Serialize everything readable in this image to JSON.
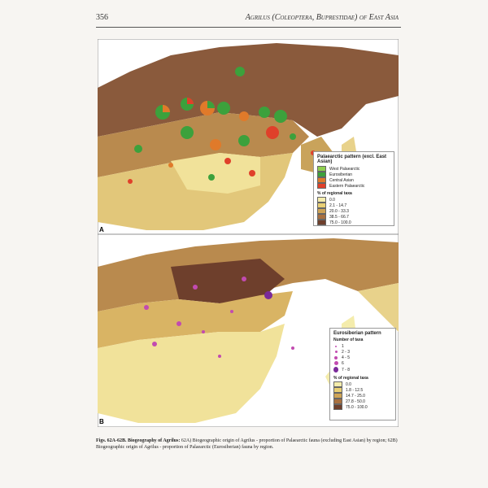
{
  "header": {
    "page_number": "356",
    "running_title": "Agrilus (Coleoptera, Buprestidae) of East Asia"
  },
  "map_a": {
    "panel_label": "A",
    "legend": {
      "title": "Palaearctic pattern (excl. East Asian)",
      "origins": [
        "West Palaearctic",
        "Eurosiberian",
        "Central Asian",
        "Eastern Palaearctic"
      ],
      "shading_title": "% of regional taxa",
      "classes": [
        "0.0",
        "2.1 - 14.7",
        "20.0 - 33.3",
        "38.5 - 66.7",
        "75.0 - 100.0"
      ]
    }
  },
  "map_b": {
    "panel_label": "B",
    "legend": {
      "title": "Eurosiberian pattern",
      "size_title": "Number of taxa",
      "sizes": [
        "1",
        "2 - 3",
        "4 - 5",
        "6",
        "7 - 8"
      ],
      "shading_title": "% of regional taxa",
      "classes": [
        "0.0",
        "1.8 - 12.5",
        "14.7 - 25.0",
        "27.8 - 50.0",
        "75.0 - 100.0"
      ]
    }
  },
  "caption": {
    "lead": "Figs. 62A-62B. Biogeography of Agrilus:",
    "text": "62A) Biogeographic origin of Agrilus - proportion of Palaearctic fauna (excluding East Asian) by region; 62B) Biogeographic origin of Agrilus - proportion of Palaearctic (Eurosiberian) fauna by region."
  }
}
